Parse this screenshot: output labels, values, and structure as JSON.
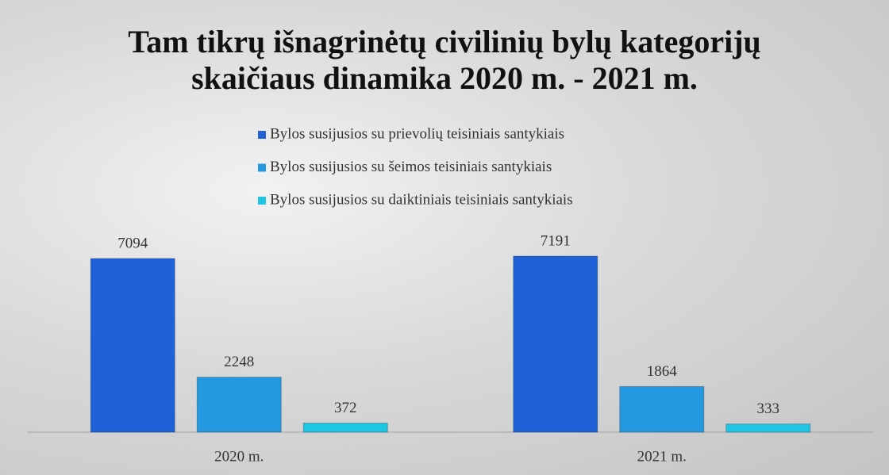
{
  "chart_data": {
    "type": "bar",
    "title": "Tam tikrų išnagrinėtų civilinių bylų kategorijų skaičiaus dinamika 2020 m. - 2021 m.",
    "categories": [
      "2020 m.",
      "2021 m."
    ],
    "series": [
      {
        "name": "Bylos susijusios su prievolių teisiniais santykiais",
        "color": "#1f62d8",
        "values": [
          7094,
          7191
        ]
      },
      {
        "name": "Bylos susijusios su šeimos teisiniais santykiais",
        "color": "#2499e0",
        "values": [
          2248,
          1864
        ]
      },
      {
        "name": "Bylos susijusios su daiktiniais teisiniais santykiais",
        "color": "#1fc6e4",
        "values": [
          372,
          333
        ]
      }
    ]
  }
}
